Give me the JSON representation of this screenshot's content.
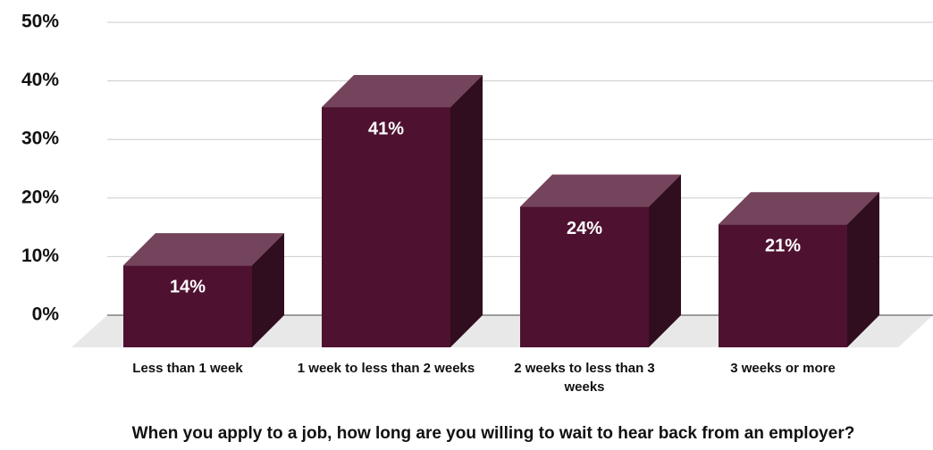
{
  "chart_data": {
    "type": "bar3d",
    "xlabel": "When you apply to a job, how long are you willing to wait to hear back from an employer?",
    "categories": [
      "Less than 1 week",
      "1 week to less than 2 weeks",
      "2 weeks to less than 3 weeks",
      "3 weeks or more"
    ],
    "values": [
      14,
      41,
      24,
      21
    ],
    "value_labels": [
      "14%",
      "41%",
      "24%",
      "21%"
    ],
    "color": "#4e1230",
    "ylim": [
      0,
      50
    ],
    "yticks": [
      {
        "value": 0,
        "label": "0%"
      },
      {
        "value": 10,
        "label": "10%"
      },
      {
        "value": 20,
        "label": "20%"
      },
      {
        "value": 30,
        "label": "30%"
      },
      {
        "value": 40,
        "label": "40%"
      },
      {
        "value": 50,
        "label": "50%"
      }
    ],
    "grid": true
  }
}
